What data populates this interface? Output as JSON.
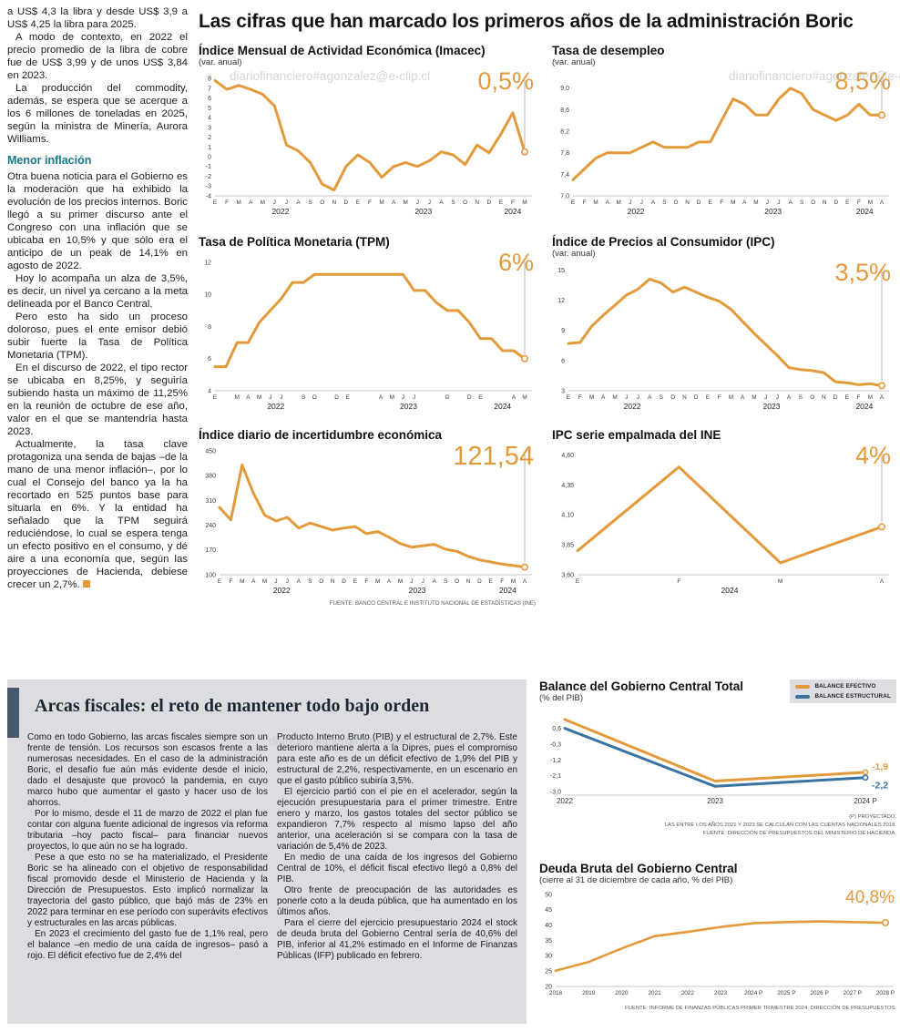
{
  "watermark": "diariofinanciero#agonzalez@e-clip.cl",
  "colors": {
    "accent_orange": "#E39A3B",
    "line_blue": "#3A72A4",
    "subhead_teal": "#15798C",
    "box_background": "#DBDDE0",
    "accent_bar": "#47596A"
  },
  "left_column": {
    "top_paragraphs": [
      "a US$ 4,3 la libra y desde US$ 3,9 a US$ 4,25 la libra para 2025.",
      "A modo de contexto, en 2022 el precio promedio de la libra de cobre fue de US$ 3,99 y de unos US$ 3,84 en 2023.",
      "La producción del commodity, además, se espera que se acerque a los 6 millones de toneladas en 2025, según la ministra de Minería, Aurora Williams."
    ],
    "subhead": "Menor inflación",
    "body_paragraphs": [
      "Otra buena noticia para el Gobierno es la moderación que ha exhibido la evolución de los precios internos. Boric llegó a su primer discurso ante el Congreso con una inflación que se ubicaba en 10,5% y que sólo era el anticipo de un peak de 14,1% en agosto de 2022.",
      "Hoy lo acompaña un alza de 3,5%, es decir, un nivel ya cercano a la meta delineada por el Banco Central.",
      "Pero esto ha sido un proceso doloroso, pues el ente emisor debió subir fuerte la Tasa de Política Monetaria (TPM).",
      "En el discurso de 2022, el tipo rector se ubicaba en 8,25%, y seguiría subiendo hasta un máximo de 11,25% en la reunión de octubre de ese año, valor en el que se mantendría hasta 2023.",
      "Actualmente, la tasa clave protagoniza una senda de bajas –de la mano de una menor inflación–, por lo cual el Consejo del banco ya la ha recortado en 525 puntos base para situarla en 6%. Y la entidad ha señalado que la TPM seguirá reduciéndose, lo cual se espera tenga un efecto positivo en el consumo, y dé aire a una economía que, según las proyecciones de Hacienda, debiese crecer un 2,7%."
    ]
  },
  "main": {
    "title": "Las cifras que han marcado los primeros años de la administración Boric",
    "source_top": "FUENTE: BANCO CENTRAL E INSTITUTO NACIONAL DE ESTADÍSTICAS (INE)"
  },
  "fiscal": {
    "title": "Arcas fiscales: el reto de mantener todo bajo orden",
    "col1": [
      "Como en todo Gobierno, las arcas fiscales siempre son un frente de tensión. Los recursos son escasos frente a las numerosas necesidades. En el caso de la administración Boric, el desafío fue aún más evidente desde el inicio, dado el desajuste que provocó la pandemia, en cuyo marco hubo que aumentar el gasto y hacer uso de los ahorros.",
      "Por lo mismo, desde el 11 de marzo de 2022 el plan fue contar con alguna fuente adicional de ingresos vía reforma tributaria –hoy pacto fiscal– para financiar nuevos proyectos, lo que aún no se ha logrado.",
      "Pese a que esto no se ha materializado, el Presidente Boric se ha alineado con el objetivo de responsabilidad fiscal promovido desde el Ministerio de Hacienda y la Dirección de Presupuestos. Esto implicó normalizar la trayectoria del gasto público, que bajó más de 23% en 2022 para terminar en ese período con superávits efectivos y estructurales en las arcas públicas.",
      "En 2023 el crecimiento del gasto fue de 1,1% real, pero el balance –en medio de una caída de ingresos– pasó a rojo. El déficit efectivo fue de 2,4% del"
    ],
    "col2": [
      "Producto Interno Bruto (PIB) y el estructural de 2,7%. Este deterioro mantiene alerta a la Dipres, pues el compromiso para este año es de un déficit efectivo de 1,9% del PIB y estructural de 2,2%, respectivamente, en un escenario en que el gasto público subiría 3,5%.",
      "El ejercicio partió con el pie en el acelerador, según la ejecución presupuestaria para el primer trimestre. Entre enero y marzo, los gastos totales del sector público se expandieron 7,7% respecto al mismo lapso del año anterior, una aceleración si se compara con la tasa de variación de 5,4% de 2023.",
      "En medio de una caída de los ingresos del Gobierno Central de 10%, el déficit fiscal efectivo llegó a 0,8% del PIB.",
      "Otro frente de preocupación de las autoridades es ponerle coto a la deuda pública, que ha aumentado en los últimos años.",
      "Para el cierre del ejercicio presupuestario 2024 el stock de deuda bruta del Gobierno Central sería de 40,6% del PIB, inferior al 41,2% estimado en el Informe de Finanzas Públicas (IFP) publicado en febrero."
    ]
  },
  "balance_legend": [
    {
      "label": "BALANCE EFECTIVO",
      "color": "#E39A3B"
    },
    {
      "label": "BALANCE ESTRUCTURAL",
      "color": "#3A72A4"
    }
  ],
  "balance_notes": [
    "(P) PROYECTADO.",
    "LAS ENTRE LOS AÑOS 2021 Y 2023 SE CALCULAN CON LAS CUENTAS NACIONALES 2018.",
    "FUENTE: DIRECCIÓN DE PRESUPUESTOS DEL MINISTERIO DE HACIENDA."
  ],
  "deuda_source": "FUENTE: INFORME DE FINANZAS PÚBLICAS PRIMER TRIMESTRE 2024, DIRECCIÓN DE PRESUPUESTOS.",
  "chart_data": [
    {
      "id": "imacec",
      "type": "line",
      "title": "Índice Mensual de Actividad Económica (Imacec)",
      "subtitle": "(var. anual)",
      "big_value": "0,5%",
      "ylim": [
        -4,
        8.4
      ],
      "ytick_vals": [
        8,
        7,
        6,
        5,
        4,
        3,
        2,
        1,
        0,
        -1,
        -2,
        -3,
        -4
      ],
      "ytick_labels": [
        "8",
        "7",
        "6",
        "5",
        "4",
        "3",
        "2",
        "1",
        "0",
        "-1",
        "-2",
        "-3",
        "-4"
      ],
      "xlabels": [
        "E",
        "F",
        "M",
        "A",
        "M",
        "J",
        "J",
        "A",
        "S",
        "O",
        "N",
        "D",
        "E",
        "F",
        "M",
        "A",
        "M",
        "J",
        "J",
        "A",
        "S",
        "O",
        "N",
        "D",
        "E",
        "F",
        "M"
      ],
      "years": [
        {
          "label": "2022",
          "from": 0,
          "to": 11
        },
        {
          "label": "2023",
          "from": 12,
          "to": 23
        },
        {
          "label": "2024",
          "from": 24,
          "to": 26
        }
      ],
      "guide": true,
      "series": [
        {
          "name": "Imacec",
          "color": "#E39A3B",
          "width": 3,
          "values": [
            7.8,
            6.9,
            7.3,
            6.9,
            6.4,
            5.2,
            1.2,
            0.6,
            -0.6,
            -2.8,
            -3.4,
            -1.0,
            0.2,
            -0.6,
            -2.1,
            -1.0,
            -0.6,
            -1.0,
            -0.4,
            0.5,
            0.2,
            -0.8,
            1.2,
            0.4,
            2.3,
            4.5,
            0.5
          ]
        }
      ]
    },
    {
      "id": "desempleo",
      "type": "line",
      "title": "Tasa de desempleo",
      "subtitle": "(var. anual)",
      "big_value": "8,5%",
      "ylim": [
        7.0,
        9.25
      ],
      "ytick_vals": [
        9.0,
        8.6,
        8.2,
        7.8,
        7.4,
        7.0
      ],
      "ytick_labels": [
        "9,0",
        "8,6",
        "8,2",
        "7,8",
        "7,4",
        "7,0"
      ],
      "xlabels": [
        "E",
        "F",
        "M",
        "A",
        "M",
        "J",
        "J",
        "A",
        "S",
        "O",
        "N",
        "D",
        "E",
        "F",
        "M",
        "A",
        "M",
        "J",
        "J",
        "A",
        "S",
        "O",
        "N",
        "D",
        "E",
        "F",
        "M",
        "A"
      ],
      "years": [
        {
          "label": "2022",
          "from": 0,
          "to": 11
        },
        {
          "label": "2023",
          "from": 12,
          "to": 23
        },
        {
          "label": "2024",
          "from": 24,
          "to": 27
        }
      ],
      "guide": true,
      "series": [
        {
          "name": "Tasa de desempleo",
          "color": "#E39A3B",
          "width": 3,
          "values": [
            7.3,
            7.5,
            7.7,
            7.8,
            7.8,
            7.8,
            7.9,
            8.0,
            7.9,
            7.9,
            7.9,
            8.0,
            8.0,
            8.4,
            8.8,
            8.7,
            8.5,
            8.5,
            8.8,
            9.0,
            8.9,
            8.6,
            8.5,
            8.4,
            8.5,
            8.7,
            8.5,
            8.5
          ]
        }
      ]
    },
    {
      "id": "tpm",
      "type": "line",
      "title": "Tasa de Política Monetaria (TPM)",
      "big_value": "6%",
      "ylim": [
        4,
        12.4
      ],
      "ytick_vals": [
        12,
        10,
        8,
        6,
        4
      ],
      "ytick_labels": [
        "12",
        "10",
        "8",
        "6",
        "4"
      ],
      "xlabels": [
        "E",
        "",
        "M",
        "A",
        "M",
        "J",
        "J",
        "",
        "S",
        "O",
        "",
        "D",
        "E",
        "",
        "",
        "A",
        "M",
        "J",
        "J",
        "",
        "",
        "O",
        "",
        "D",
        "E",
        "",
        "",
        "A",
        "M"
      ],
      "years": [
        {
          "label": "2022",
          "from": 0,
          "to": 11
        },
        {
          "label": "2023",
          "from": 12,
          "to": 23
        },
        {
          "label": "2024",
          "from": 24,
          "to": 28
        }
      ],
      "guide": true,
      "series": [
        {
          "name": "TPM",
          "color": "#E39A3B",
          "width": 3,
          "values": [
            5.5,
            5.5,
            7.0,
            7.0,
            8.25,
            9.0,
            9.75,
            10.75,
            10.75,
            11.25,
            11.25,
            11.25,
            11.25,
            11.25,
            11.25,
            11.25,
            11.25,
            11.25,
            10.25,
            10.25,
            9.5,
            9.0,
            9.0,
            8.25,
            7.25,
            7.25,
            6.5,
            6.5,
            6.0
          ]
        }
      ]
    },
    {
      "id": "ipc",
      "type": "line",
      "title": "Índice de Precios al Consumidor (IPC)",
      "subtitle": "(var. anual)",
      "big_value": "3,5%",
      "ylim": [
        3,
        15.4
      ],
      "ytick_vals": [
        15,
        12,
        9,
        6,
        3
      ],
      "ytick_labels": [
        "15",
        "12",
        "9",
        "6",
        "3"
      ],
      "xlabels": [
        "E",
        "F",
        "M",
        "A",
        "M",
        "J",
        "J",
        "A",
        "S",
        "O",
        "N",
        "D",
        "E",
        "F",
        "M",
        "A",
        "M",
        "J",
        "J",
        "A",
        "S",
        "O",
        "N",
        "D",
        "E",
        "F",
        "M",
        "A"
      ],
      "years": [
        {
          "label": "2022",
          "from": 0,
          "to": 11
        },
        {
          "label": "2023",
          "from": 12,
          "to": 23
        },
        {
          "label": "2024",
          "from": 24,
          "to": 27
        }
      ],
      "guide": true,
      "series": [
        {
          "name": "IPC var. anual",
          "color": "#E39A3B",
          "width": 3,
          "values": [
            7.7,
            7.8,
            9.4,
            10.5,
            11.5,
            12.5,
            13.1,
            14.1,
            13.7,
            12.8,
            13.3,
            12.8,
            12.3,
            11.9,
            11.1,
            9.9,
            8.7,
            7.6,
            6.5,
            5.3,
            5.1,
            5.0,
            4.8,
            3.9,
            3.8,
            3.6,
            3.7,
            3.5
          ]
        }
      ]
    },
    {
      "id": "incertidumbre",
      "type": "line",
      "title": "Índice diario de incertidumbre económica",
      "big_value": "121,54",
      "ylim": [
        100,
        455
      ],
      "ytick_vals": [
        450,
        380,
        310,
        240,
        170,
        100
      ],
      "ytick_labels": [
        "450",
        "380",
        "310",
        "240",
        "170",
        "100"
      ],
      "xlabels": [
        "E",
        "F",
        "M",
        "A",
        "M",
        "J",
        "J",
        "A",
        "S",
        "O",
        "N",
        "D",
        "E",
        "F",
        "M",
        "A",
        "M",
        "J",
        "J",
        "A",
        "S",
        "O",
        "N",
        "D",
        "E",
        "F",
        "M",
        "A"
      ],
      "years": [
        {
          "label": "2022",
          "from": 0,
          "to": 11
        },
        {
          "label": "2023",
          "from": 12,
          "to": 23
        },
        {
          "label": "2024",
          "from": 24,
          "to": 27
        }
      ],
      "guide": true,
      "series": [
        {
          "name": "Incertidumbre económica",
          "color": "#E39A3B",
          "width": 3,
          "values": [
            290,
            255,
            410,
            330,
            268,
            252,
            262,
            232,
            246,
            236,
            226,
            232,
            236,
            216,
            222,
            206,
            188,
            178,
            182,
            186,
            172,
            166,
            152,
            142,
            136,
            130,
            126,
            121.54
          ]
        }
      ]
    },
    {
      "id": "ipc-empalmada",
      "type": "line",
      "title": "IPC serie empalmada del INE",
      "big_value": "4%",
      "ylim": [
        3.6,
        4.65
      ],
      "ytick_vals": [
        4.6,
        4.35,
        4.1,
        3.85,
        3.6
      ],
      "ytick_labels": [
        "4,60",
        "4,35",
        "4,10",
        "3,85",
        "3,60"
      ],
      "xlabels": [
        "E",
        "F",
        "M",
        "A"
      ],
      "years": [
        {
          "label": "2024",
          "from": 1,
          "to": 2
        }
      ],
      "guide": true,
      "series": [
        {
          "name": "IPC serie empalmada",
          "color": "#E39A3B",
          "width": 3,
          "values": [
            3.8,
            4.5,
            3.7,
            4.0
          ]
        }
      ]
    },
    {
      "id": "balance",
      "type": "line",
      "title": "Balance del Gobierno Central Total",
      "subtitle": "(% del PIB)",
      "ylim": [
        -3.2,
        1.2
      ],
      "ytick_vals": [
        0.6,
        -0.3,
        -1.2,
        -2.1,
        -3.0
      ],
      "ytick_labels": [
        "0,6",
        "-0,3",
        "-1,2",
        "-2,1",
        "-3,0"
      ],
      "xlabels": [
        "2022",
        "2023",
        "2024 P"
      ],
      "xtick_class": "xtick-lg",
      "marker_r": 2.6,
      "guide": false,
      "series": [
        {
          "name": "Balance efectivo",
          "color": "#E39A3B",
          "width": 3,
          "values": [
            1.1,
            -2.4,
            -1.9
          ]
        },
        {
          "name": "Balance estructural",
          "color": "#3A72A4",
          "width": 3,
          "values": [
            0.6,
            -2.7,
            -2.2
          ]
        }
      ],
      "end_labels": [
        {
          "text": "-1,9",
          "color": "#E39A3B",
          "dy": -3
        },
        {
          "text": "-2,2",
          "color": "#3A72A4",
          "dy": 12
        }
      ]
    },
    {
      "id": "deuda",
      "type": "line",
      "title": "Deuda Bruta del Gobierno Central",
      "subtitle": "(cierre al 31 de diciembre de cada año, % del PIB)",
      "big_value": "40,8%",
      "ylim": [
        20,
        50
      ],
      "ytick_vals": [
        50,
        45,
        40,
        35,
        30,
        25,
        20
      ],
      "ytick_labels": [
        "50",
        "45",
        "40",
        "35",
        "30",
        "25",
        "20"
      ],
      "xlabels": [
        "2018",
        "2019",
        "2020",
        "2021",
        "2022",
        "2023",
        "2024 P",
        "2025 P",
        "2026 P",
        "2027 P",
        "2028 P"
      ],
      "guide": false,
      "series": [
        {
          "name": "Deuda bruta",
          "color": "#E39A3B",
          "width": 2.6,
          "values": [
            25.1,
            28.0,
            32.4,
            36.4,
            37.8,
            39.4,
            40.6,
            41.0,
            41.2,
            41.0,
            40.8
          ]
        }
      ]
    }
  ]
}
